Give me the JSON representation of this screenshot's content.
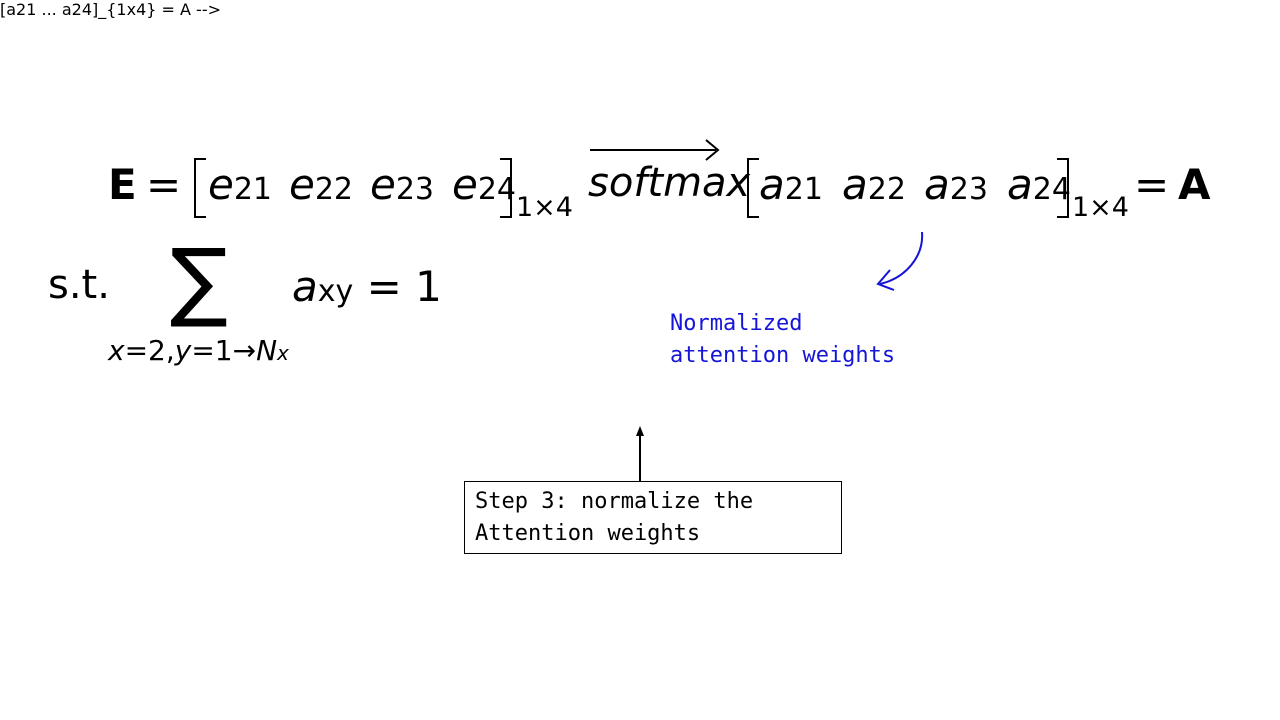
{
  "equation": {
    "lhs_symbol": "E",
    "equals": "=",
    "e_vector": [
      {
        "base": "e",
        "sub": "21"
      },
      {
        "base": "e",
        "sub": "22"
      },
      {
        "base": "e",
        "sub": "23"
      },
      {
        "base": "e",
        "sub": "24"
      }
    ],
    "dimension": "1×4",
    "operator": "softmax",
    "a_vector": [
      {
        "base": "a",
        "sub": "21"
      },
      {
        "base": "a",
        "sub": "22"
      },
      {
        "base": "a",
        "sub": "23"
      },
      {
        "base": "a",
        "sub": "24"
      }
    ],
    "rhs_symbol": "A"
  },
  "constraint": {
    "prefix": "s.t.",
    "sum_symbol": "∑",
    "sum_index_a": "x",
    "sum_index_eq_a": "=2,",
    "sum_index_b": "y",
    "sum_index_eq_b": "=1→",
    "sum_index_limit": "N",
    "sum_index_limit_sub": "x",
    "term_base": "a",
    "term_sub": "xy",
    "term_rhs": "= 1"
  },
  "annotation": {
    "line1": "Normalized",
    "line2": "attention weights",
    "color": "#1515d8"
  },
  "step_box": {
    "line1": "Step 3: normalize the",
    "line2": "Attention weights"
  }
}
